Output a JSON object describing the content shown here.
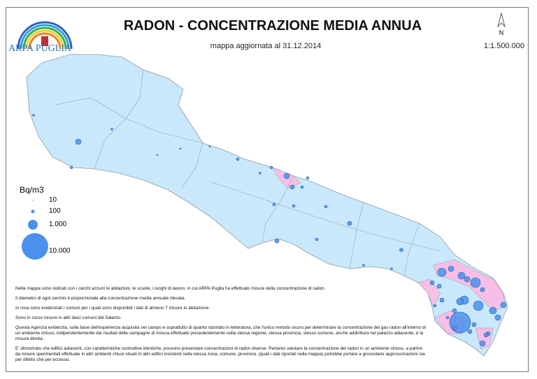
{
  "header": {
    "title": "RADON - CONCENTRAZIONE MEDIA ANNUA",
    "subtitle": "mappa aggiornata al 31.12.2014",
    "scale": "1:1.500.000",
    "north": "N",
    "logo_text": "ARPA PUGLIA"
  },
  "legend": {
    "title": "Bq/m3",
    "items": [
      {
        "label": "10",
        "value": 10
      },
      {
        "label": "100",
        "value": 100
      },
      {
        "label": "1.000",
        "value": 1000
      },
      {
        "label": "10.000",
        "value": 10000
      }
    ]
  },
  "colors": {
    "land": "#c9e8fb",
    "highlight": "#f7bfe6",
    "circle": "#4a90ec",
    "border": "#9aa5b0"
  },
  "notes": [
    "Nella mappa sono indicati con i cerchi azzurri le abitazioni, le scuole, i luoghi di lavoro, in cui ARPA Puglia ha effettuato misure della concentrazione di radon.",
    "Il diametro di ogni cerchio è proporzionale alla concentrazione media annuale rilevata.",
    "In rosa sono evidenziati i comuni per i quali sono disponibili i dati di almeno 7 misure in abitazione.",
    "Sono in corso misure in altri dieci comuni del Salento.",
    "Questa Agenzia evidenzia, sulla base dell'esperienza acquisita nel campo e soprattutto di quanto riportato in letteratura, che l'unico metodo sicuro per determinare la concentrazione del gas radon all'interno di un ambiente chiuso, indipendentemente dai risultati delle campagne di misura effettuate precedentemente nella stessa regione, stessa provincia, stesso comune, anche addirittura nel palazzo adiacente, è la misura diretta.",
    "E' dimostrato che edifici adiacenti, con caratteristiche costruttive identiche, possono presentare concentrazioni di radon diverse. Pertanto valutare la concentrazione del radon in un ambiente chiuso, a partire da misure sperimentali effettuate in altri ambienti chiusi situati in altri edifici insistenti nella stessa zona, comune, provincia, (quali i dati riportati nella mappa) potrebbe portare a grossolane approssimazioni sia per difetto che per eccesso."
  ]
}
